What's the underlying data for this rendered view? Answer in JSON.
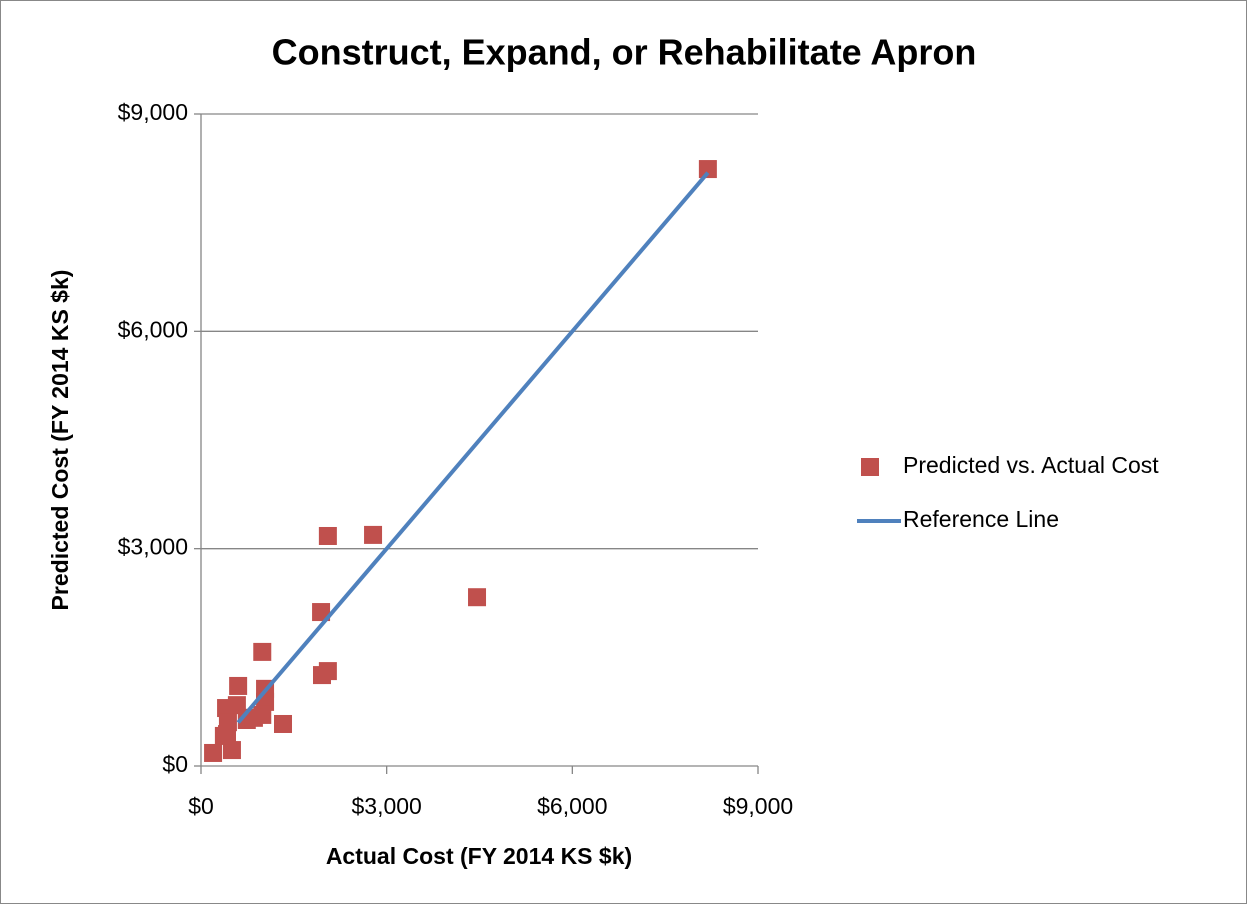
{
  "chart_data": {
    "type": "scatter",
    "title": "Construct, Expand, or Rehabilitate Apron",
    "x_label": "Actual Cost (FY 2014 KS $k)",
    "y_label": "Predicted Cost (FY 2014 KS $k)",
    "xlim": [
      0,
      9000
    ],
    "ylim": [
      0,
      9000
    ],
    "xticks": [
      {
        "value": 0,
        "label": "$0"
      },
      {
        "value": 3000,
        "label": "$3,000"
      },
      {
        "value": 6000,
        "label": "$6,000"
      },
      {
        "value": 9000,
        "label": "$9,000"
      }
    ],
    "yticks": [
      {
        "value": 0,
        "label": "$0"
      },
      {
        "value": 3000,
        "label": "$3,000"
      },
      {
        "value": 6000,
        "label": "$6,000"
      },
      {
        "value": 9000,
        "label": "$9,000"
      }
    ],
    "grid": true,
    "legend": "right",
    "series": [
      {
        "name": "Predicted vs. Actual Cost",
        "type": "scatter",
        "color": "#c0504d",
        "x": [
          8190,
          4460,
          2780,
          2050,
          1940,
          1955,
          2050,
          990,
          1035,
          1035,
          990,
          600,
          580,
          740,
          1325,
          405,
          435,
          420,
          500,
          195,
          855,
          370
        ],
        "values": [
          8240,
          2330,
          3190,
          3175,
          2125,
          1255,
          1310,
          1575,
          1065,
          885,
          705,
          1105,
          840,
          635,
          580,
          800,
          605,
          440,
          220,
          180,
          665,
          415
        ]
      },
      {
        "name": "Reference Line",
        "type": "line",
        "color": "#4f81bd",
        "x": [
          600,
          8190
        ],
        "values": [
          600,
          8190
        ]
      }
    ]
  }
}
